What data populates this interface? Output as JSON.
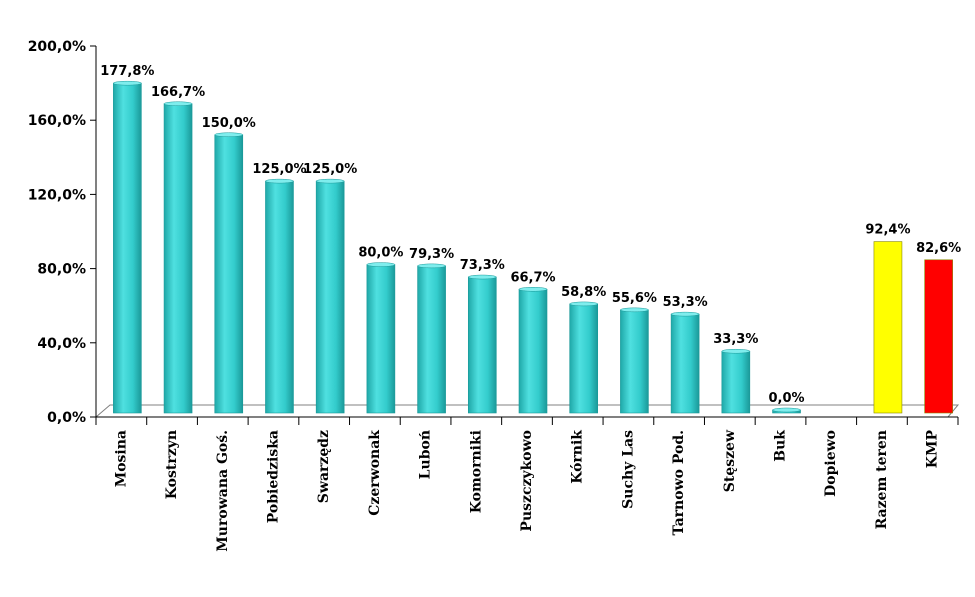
{
  "chart_data": {
    "type": "bar",
    "title": "",
    "xlabel": "",
    "ylabel": "",
    "ylim": [
      0,
      200
    ],
    "yticks": [
      0,
      40,
      80,
      120,
      160,
      200
    ],
    "ytick_labels": [
      "0,0%",
      "40,0%",
      "80,0%",
      "120,0%",
      "160,0%",
      "200,0%"
    ],
    "grid": false,
    "categories": [
      "Mosina",
      "Kostrzyn",
      "Murowana Goś.",
      "Pobiedziska",
      "Swarzędz",
      "Czerwonak",
      "Luboń",
      "Komorniki",
      "Puszczykowo",
      "Kórnik",
      "Suchy Las",
      "Tarnowo Pod.",
      "Stęszew",
      "Buk",
      "Dopiewo",
      "Razem teren",
      "KMP"
    ],
    "values": [
      177.8,
      166.7,
      150.0,
      125.0,
      125.0,
      80.0,
      79.3,
      73.3,
      66.7,
      58.8,
      55.6,
      53.3,
      33.3,
      0.0,
      null,
      92.4,
      82.6
    ],
    "value_labels": [
      "177,8%",
      "166,7%",
      "150,0%",
      "125,0%",
      "125,0%",
      "80,0%",
      "79,3%",
      "73,3%",
      "66,7%",
      "58,8%",
      "55,6%",
      "53,3%",
      "33,3%",
      "0,0%",
      "",
      "92,4%",
      "82,6%"
    ],
    "bar_colors": [
      "#33CCCC",
      "#33CCCC",
      "#33CCCC",
      "#33CCCC",
      "#33CCCC",
      "#33CCCC",
      "#33CCCC",
      "#33CCCC",
      "#33CCCC",
      "#33CCCC",
      "#33CCCC",
      "#33CCCC",
      "#33CCCC",
      "#33CCCC",
      "#33CCCC",
      "#FFFF00",
      "#FF0000"
    ],
    "legend": "none"
  }
}
